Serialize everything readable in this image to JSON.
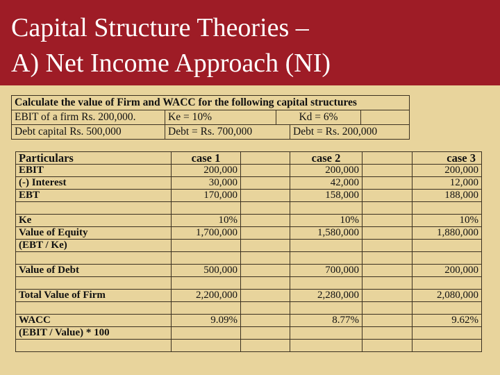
{
  "title": {
    "line1": "Capital Structure Theories –",
    "line2": "A) Net Income Approach (NI)"
  },
  "given": {
    "heading": "Calculate the value of Firm and WACC for the following capital structures",
    "row1": [
      "EBIT of a firm Rs. 200,000.",
      "Ke = 10%",
      "Kd = 6%",
      ""
    ],
    "row2": [
      "Debt capital Rs. 500,000",
      "Debt = Rs. 700,000",
      "Debt = Rs. 200,000"
    ]
  },
  "calc": {
    "headers": [
      "Particulars",
      "case 1",
      "",
      "case 2",
      "",
      "case 3"
    ],
    "rows": [
      {
        "label": "EBIT",
        "values": [
          "200,000",
          "200,000",
          "200,000"
        ]
      },
      {
        "label": "(-) Interest",
        "values": [
          "30,000",
          "42,000",
          "12,000"
        ]
      },
      {
        "label": "EBT",
        "values": [
          "170,000",
          "158,000",
          "188,000"
        ]
      },
      {
        "label": "",
        "values": [
          "",
          "",
          ""
        ]
      },
      {
        "label": "Ke",
        "values": [
          "10%",
          "10%",
          "10%"
        ]
      },
      {
        "label": "Value of Equity",
        "values": [
          "1,700,000",
          "1,580,000",
          "1,880,000"
        ]
      },
      {
        "label": "(EBT / Ke)",
        "values": [
          "",
          "",
          ""
        ]
      },
      {
        "label": "",
        "values": [
          "",
          "",
          ""
        ]
      },
      {
        "label": "Value of Debt",
        "values": [
          "500,000",
          "700,000",
          "200,000"
        ]
      },
      {
        "label": "",
        "values": [
          "",
          "",
          ""
        ]
      },
      {
        "label": "Total Value of Firm",
        "values": [
          "2,200,000",
          "2,280,000",
          "2,080,000"
        ]
      },
      {
        "label": "",
        "values": [
          "",
          "",
          ""
        ]
      },
      {
        "label": "WACC",
        "values": [
          "9.09%",
          "8.77%",
          "9.62%"
        ]
      },
      {
        "label": "(EBIT / Value) * 100",
        "values": [
          "",
          "",
          ""
        ]
      },
      {
        "label": "",
        "values": [
          "",
          "",
          ""
        ]
      }
    ]
  },
  "colors": {
    "header_bg": "#9e1c26",
    "slide_bg": "#e8d49c",
    "title_text": "#ffffff"
  }
}
